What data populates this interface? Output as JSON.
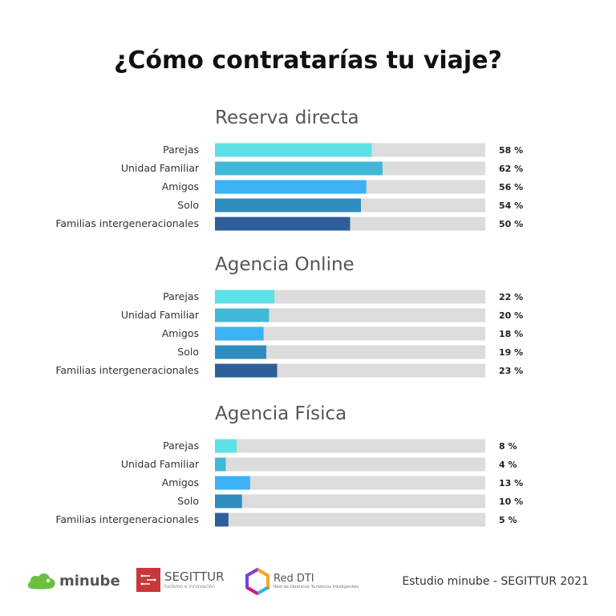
{
  "title": "¿Cómo contratarías tu viaje?",
  "colors": {
    "track": "#dcdcdc",
    "series": [
      "#5ce1e6",
      "#42b8d8",
      "#3db1f6",
      "#2f8dbf",
      "#2f5f9a"
    ]
  },
  "chart_data": [
    {
      "type": "bar",
      "orientation": "horizontal",
      "title": "Reserva directa",
      "categories": [
        "Parejas",
        "Unidad Familiar",
        "Amigos",
        "Solo",
        "Familias intergeneracionales"
      ],
      "values": [
        58,
        62,
        56,
        54,
        50
      ],
      "value_labels": [
        "58 %",
        "62 %",
        "56 %",
        "54 %",
        "50 %"
      ],
      "unit": "%",
      "xlim": [
        0,
        100
      ],
      "grid": false,
      "legend": "none"
    },
    {
      "type": "bar",
      "orientation": "horizontal",
      "title": "Agencia Online",
      "categories": [
        "Parejas",
        "Unidad Familiar",
        "Amigos",
        "Solo",
        "Familias intergeneracionales"
      ],
      "values": [
        22,
        20,
        18,
        19,
        23
      ],
      "value_labels": [
        "22 %",
        "20 %",
        "18 %",
        "19 %",
        "23 %"
      ],
      "unit": "%",
      "xlim": [
        0,
        100
      ],
      "grid": false,
      "legend": "none"
    },
    {
      "type": "bar",
      "orientation": "horizontal",
      "title": "Agencia Física",
      "categories": [
        "Parejas",
        "Unidad Familiar",
        "Amigos",
        "Solo",
        "Familias intergeneracionales"
      ],
      "values": [
        8,
        4,
        13,
        10,
        5
      ],
      "value_labels": [
        "8 %",
        "4 %",
        "13 %",
        "10 %",
        "5 %"
      ],
      "unit": "%",
      "xlim": [
        0,
        100
      ],
      "grid": false,
      "legend": "none"
    }
  ],
  "footer": {
    "minube_logo": "minube",
    "segittur_logo": "SEGITTUR",
    "segittur_tagline": "turismo e innovación",
    "reddti_logo": "Red DTI",
    "reddti_tagline": "Red de Destinos Turísticos Inteligentes",
    "credit": "Estudio minube - SEGITTUR 2021",
    "icons": [
      "minube-cloud-icon",
      "segittur-logo-icon",
      "reddti-hexagon-icon"
    ]
  }
}
